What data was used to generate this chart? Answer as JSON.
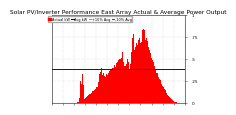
{
  "title": "Solar PV/Inverter Performance East Array Actual & Average Power Output",
  "bg_color": "#ffffff",
  "plot_bg_color": "#ffffff",
  "grid_color": "#bbbbbb",
  "bar_color": "#ff0000",
  "avg_line_color": "#0000dd",
  "avg_value": 0.38,
  "ylim": [
    0,
    1.0
  ],
  "xlim": [
    0,
    288
  ],
  "yticks": [
    0.0,
    0.25,
    0.5,
    0.75,
    1.0
  ],
  "ytick_labels": [
    "0",
    ".25",
    ".5",
    ".75",
    "1"
  ],
  "num_bars": 288,
  "legend_items": [
    {
      "label": "Actual kW",
      "color": "#ff0000",
      "type": "patch"
    },
    {
      "label": "Avg kW",
      "color": "#0000dd",
      "type": "line"
    },
    {
      "label": "+10% Avg",
      "color": "#ff8800",
      "type": "line"
    },
    {
      "label": "-10% Avg",
      "color": "#008800",
      "type": "line"
    }
  ],
  "title_fontsize": 4.2,
  "tick_fontsize": 3.0,
  "legend_fontsize": 2.5
}
